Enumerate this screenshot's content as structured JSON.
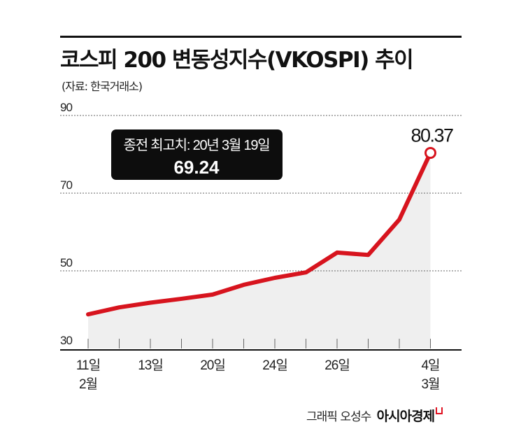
{
  "header": {
    "title": "코스피 200 변동성지수(VKOSPI) 추이",
    "source": "(자료: 한국거래소)"
  },
  "annotation": {
    "label": "종전 최고치: 20년 3월 19일",
    "value": "69.24",
    "last_value_label": "80.37"
  },
  "footer": {
    "credit": "그래픽 오성수",
    "brand": "아시아경제"
  },
  "colors": {
    "line": "#d7141e",
    "area": "#efefef",
    "annotation_bg": "#0d0d0d"
  },
  "chart_data": {
    "type": "line",
    "title": "코스피 200 변동성지수(VKOSPI) 추이",
    "subtitle": "(자료: 한국거래소)",
    "xlabel": "",
    "ylabel": "",
    "ylim": [
      30,
      90
    ],
    "yticks": [
      30,
      50,
      70,
      90
    ],
    "grid": true,
    "x": [
      "2월 11일",
      "",
      "13일",
      "",
      "20일",
      "",
      "24일",
      "",
      "26일",
      "",
      "",
      "3월 4일"
    ],
    "x_tick_labels": [
      {
        "index": 0,
        "day": "11일",
        "month": "2월"
      },
      {
        "index": 2,
        "day": "13일"
      },
      {
        "index": 4,
        "day": "20일"
      },
      {
        "index": 6,
        "day": "24일"
      },
      {
        "index": 8,
        "day": "26일"
      },
      {
        "index": 11,
        "day": "4일",
        "month": "3월"
      }
    ],
    "series": [
      {
        "name": "VKOSPI",
        "values": [
          38.8,
          40.6,
          41.8,
          42.8,
          43.9,
          46.4,
          48.2,
          49.6,
          54.7,
          54.1,
          63.2,
          80.37
        ]
      }
    ],
    "annotations": [
      {
        "text": "종전 최고치: 20년 3월 19일",
        "value": 69.24
      },
      {
        "text": "80.37",
        "point_index": 11
      }
    ]
  }
}
